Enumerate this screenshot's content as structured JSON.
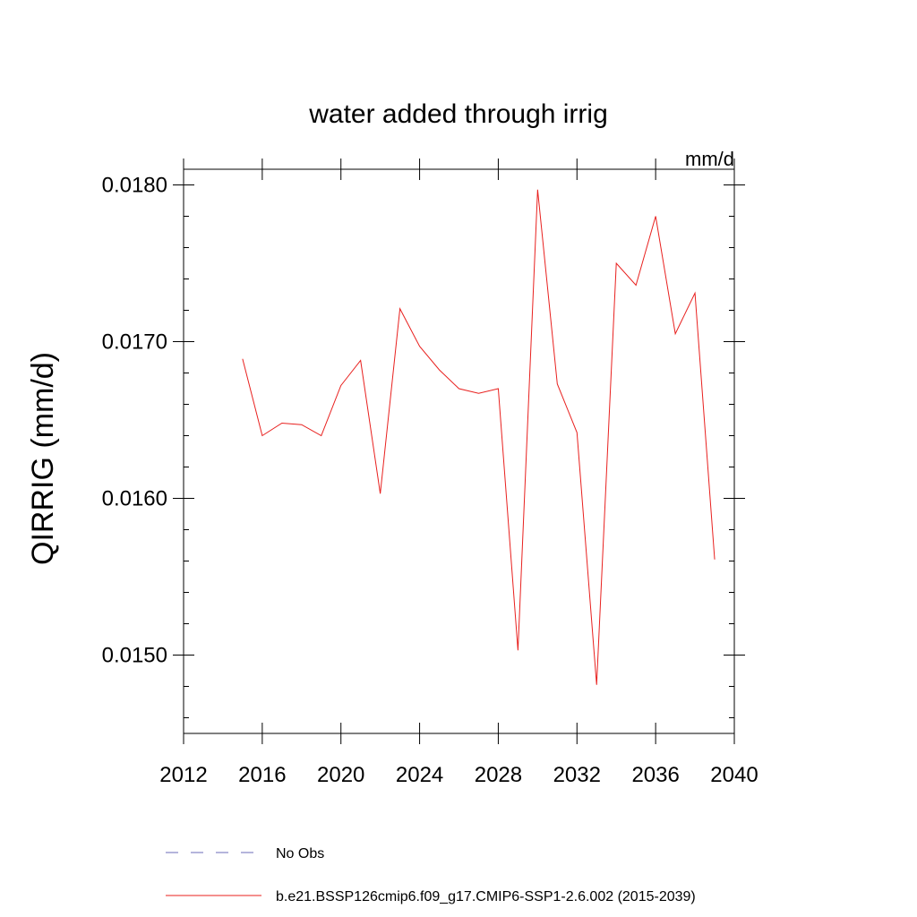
{
  "chart_data": {
    "type": "line",
    "title": "water added through irrig",
    "units": "mm/d",
    "xlabel": "",
    "ylabel": "QIRRIG  (mm/d)",
    "xlim": [
      2012,
      2040
    ],
    "ylim": [
      0.0145,
      0.0181
    ],
    "xticks": [
      2012,
      2016,
      2020,
      2024,
      2028,
      2032,
      2036,
      2040
    ],
    "yticks": [
      {
        "value": 0.015,
        "label": "0.0150"
      },
      {
        "value": 0.016,
        "label": "0.0160"
      },
      {
        "value": 0.017,
        "label": "0.0170"
      },
      {
        "value": 0.018,
        "label": "0.0180"
      }
    ],
    "grid": false,
    "series": [
      {
        "name": "b.e21.BSSP126cmip6.f09_g17.CMIP6-SSP1-2.6.002 (2015-2039)",
        "color": "#e8201e",
        "style": "solid",
        "x": [
          2015,
          2016,
          2017,
          2018,
          2019,
          2020,
          2021,
          2022,
          2023,
          2024,
          2025,
          2026,
          2027,
          2028,
          2029,
          2030,
          2031,
          2032,
          2033,
          2034,
          2035,
          2036,
          2037,
          2038,
          2039
        ],
        "values": [
          0.01689,
          0.0164,
          0.01648,
          0.01647,
          0.0164,
          0.01672,
          0.01688,
          0.01603,
          0.01721,
          0.01697,
          0.01682,
          0.0167,
          0.01667,
          0.0167,
          0.01503,
          0.01797,
          0.01673,
          0.01642,
          0.01481,
          0.0175,
          0.01736,
          0.0178,
          0.01705,
          0.01731,
          0.01561
        ]
      }
    ],
    "legend": [
      {
        "label": "No Obs",
        "color": "#6b6bb8",
        "style": "dashed"
      },
      {
        "label": "b.e21.BSSP126cmip6.f09_g17.CMIP6-SSP1-2.6.002 (2015-2039)",
        "color": "#e8201e",
        "style": "solid"
      }
    ]
  }
}
